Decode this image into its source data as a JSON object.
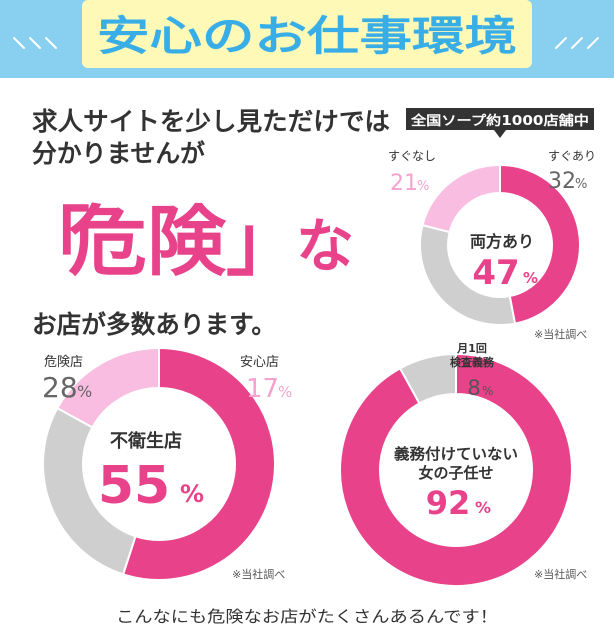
{
  "header": {
    "title": "安心のお仕事環境"
  },
  "intro": {
    "line1": "求人サイトを少し見ただけでは",
    "line2": "分かりませんが",
    "big_open": "「",
    "big_word": "危険",
    "big_close": "」",
    "big_suffix": "な",
    "line3": "お店が多数あります。"
  },
  "footer": {
    "text": "こんなにも危険なお店がたくさんあるんです！"
  },
  "colors": {
    "pink": "#e8428a",
    "light_pink": "#f8bde0",
    "gray": "#cfcfcf",
    "header_bg": "#88cff0",
    "dark_text": "#333333"
  },
  "chart_data": [
    {
      "type": "pie",
      "badge": "全国ソープ約1000店舗中",
      "center_label": "両方あり",
      "note": "※当社調べ",
      "slices": [
        {
          "label": "両方あり",
          "value": 47,
          "display": "47",
          "unit": "%",
          "color": "#e8428a"
        },
        {
          "label": "すぐあり",
          "value": 32,
          "display": "32",
          "unit": "%",
          "color": "#cfcfcf"
        },
        {
          "label": "すぐなし",
          "value": 21,
          "display": "21",
          "unit": "%",
          "color": "#f8bde0"
        }
      ]
    },
    {
      "type": "pie",
      "center_label": "不衛生店",
      "note": "※当社調べ",
      "slices": [
        {
          "label": "不衛生店",
          "value": 55,
          "display": "55",
          "unit": "%",
          "color": "#e8428a"
        },
        {
          "label": "危険店",
          "value": 28,
          "display": "28",
          "unit": "%",
          "color": "#cfcfcf"
        },
        {
          "label": "安心店",
          "value": 17,
          "display": "17",
          "unit": "%",
          "color": "#f8bde0"
        }
      ]
    },
    {
      "type": "pie",
      "center_label_lines": [
        "義務付けていない",
        "女の子任せ"
      ],
      "note": "※当社調べ",
      "slices": [
        {
          "label": "義務付けていない女の子任せ",
          "value": 92,
          "display": "92",
          "unit": "%",
          "color": "#e8428a"
        },
        {
          "label_lines": [
            "月1回",
            "検査義務"
          ],
          "value": 8,
          "display": "8",
          "unit": "%",
          "color": "#cfcfcf"
        }
      ]
    }
  ]
}
